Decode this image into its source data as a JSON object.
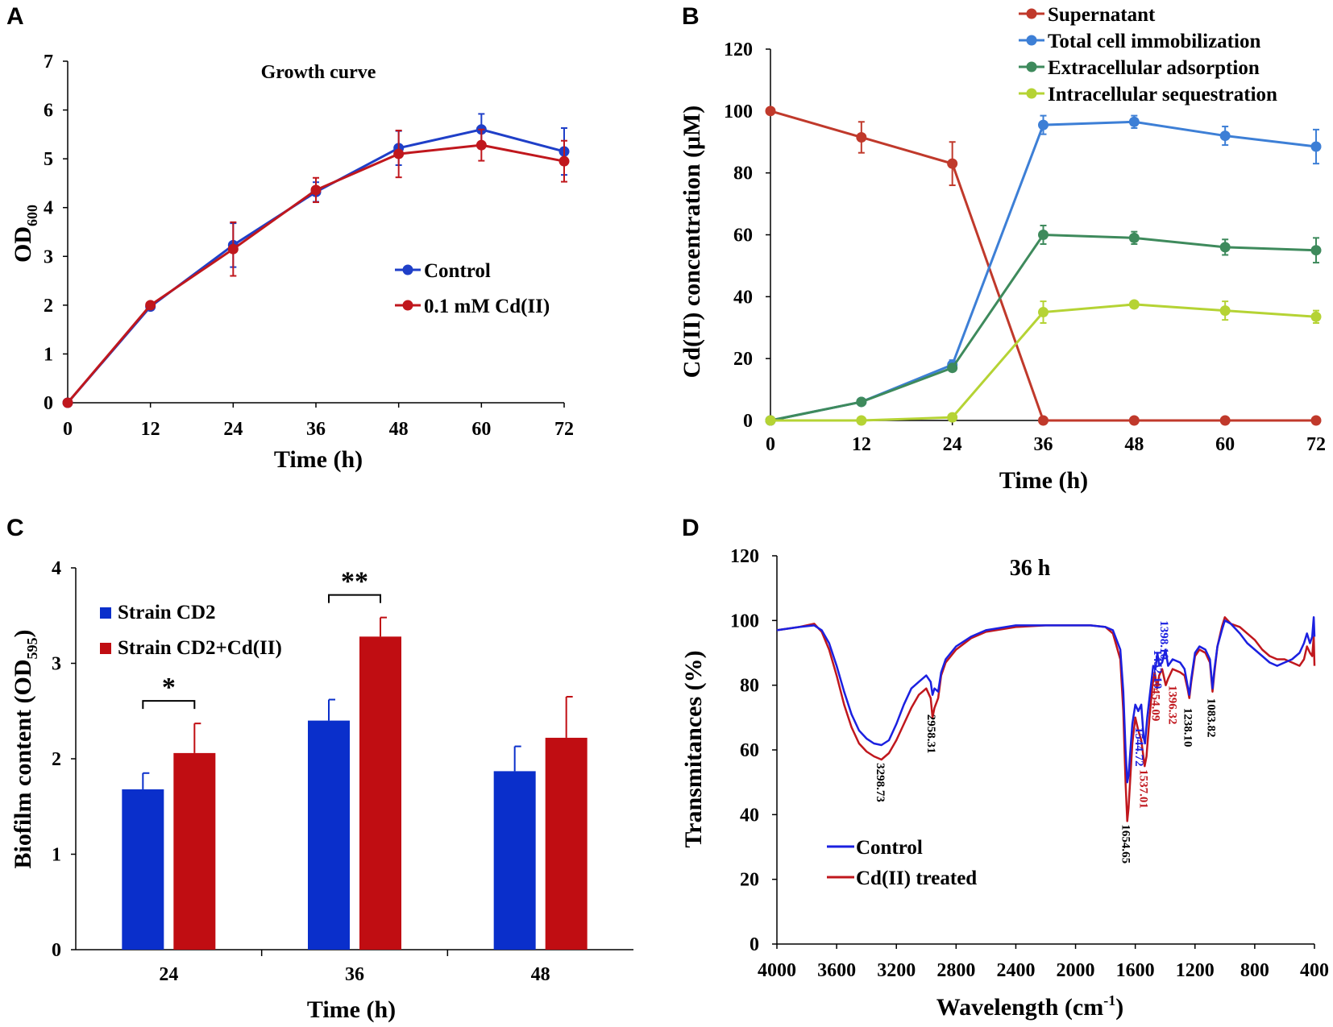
{
  "chart_data": [
    {
      "panel": "A",
      "type": "line",
      "title": "Growth curve",
      "xlabel": "Time (h)",
      "ylabel": "OD",
      "ylabel_sub": "600",
      "x": [
        0,
        12,
        24,
        36,
        48,
        60,
        72
      ],
      "xlim": [
        0,
        72
      ],
      "ylim": [
        0,
        7
      ],
      "xticks": [
        0,
        12,
        24,
        36,
        48,
        60,
        72
      ],
      "yticks": [
        0,
        1,
        2,
        3,
        4,
        5,
        6,
        7
      ],
      "legend": "center-right",
      "series": [
        {
          "name": "Control",
          "color": "#1f3fc8",
          "values": [
            0,
            1.97,
            3.23,
            4.32,
            5.22,
            5.6,
            5.15
          ],
          "errors": [
            0,
            0.05,
            0.45,
            0.2,
            0.35,
            0.32,
            0.48
          ]
        },
        {
          "name": "0.1 mM Cd(II)",
          "color": "#c0171d",
          "values": [
            0,
            2.0,
            3.15,
            4.36,
            5.1,
            5.28,
            4.95
          ],
          "errors": [
            0,
            0.05,
            0.55,
            0.25,
            0.48,
            0.32,
            0.42
          ]
        }
      ]
    },
    {
      "panel": "B",
      "type": "line",
      "title": "",
      "xlabel": "Time (h)",
      "ylabel": "Cd(II) concentration (μM)",
      "x": [
        0,
        12,
        24,
        36,
        48,
        60,
        72
      ],
      "xlim": [
        0,
        72
      ],
      "ylim": [
        0,
        120
      ],
      "xticks": [
        0,
        12,
        24,
        36,
        48,
        60,
        72
      ],
      "yticks": [
        0,
        20,
        40,
        60,
        80,
        100,
        120
      ],
      "legend": "top-right",
      "series": [
        {
          "name": "Supernatant",
          "color": "#c0392b",
          "values": [
            100,
            91.5,
            83,
            0,
            0,
            0,
            0
          ],
          "errors": [
            0,
            5,
            7,
            0,
            0,
            0,
            0
          ]
        },
        {
          "name": "Total cell immobilization",
          "color": "#3d7fd6",
          "values": [
            0,
            6,
            18,
            95.5,
            96.5,
            92,
            88.5
          ],
          "errors": [
            0,
            1,
            1.5,
            3,
            2,
            3,
            5.5
          ]
        },
        {
          "name": "Extracellular adsorption",
          "color": "#3e8a5c",
          "values": [
            0,
            6,
            17,
            60,
            59,
            56,
            55
          ],
          "errors": [
            0,
            1,
            1,
            3,
            2,
            2.5,
            4
          ]
        },
        {
          "name": "Intracellular sequestration",
          "color": "#b5d334",
          "values": [
            0,
            0,
            1,
            35,
            37.5,
            35.5,
            33.5
          ],
          "errors": [
            0,
            0,
            0.5,
            3.5,
            1,
            3,
            2
          ]
        }
      ]
    },
    {
      "panel": "C",
      "type": "bar",
      "title": "",
      "xlabel": "Time (h)",
      "ylabel": "Biofilm content (OD",
      "ylabel_sub": "595",
      "ylabel_end": ")",
      "categories": [
        "24",
        "36",
        "48"
      ],
      "ylim": [
        0,
        4
      ],
      "yticks": [
        0,
        1,
        2,
        3,
        4
      ],
      "legend": "top-left",
      "series": [
        {
          "name": "Strain CD2",
          "color": "#0a2fcb",
          "values": [
            1.68,
            2.4,
            1.87
          ],
          "errors": [
            0.17,
            0.22,
            0.26
          ]
        },
        {
          "name": "Strain CD2+Cd(II)",
          "color": "#c00d12",
          "values": [
            2.06,
            3.28,
            2.22
          ],
          "errors": [
            0.31,
            0.2,
            0.43
          ]
        }
      ],
      "significance": [
        {
          "category": "24",
          "label": "*"
        },
        {
          "category": "36",
          "label": "**"
        }
      ]
    },
    {
      "panel": "D",
      "type": "line",
      "title": "36 h",
      "xlabel": "Wavelength (cm",
      "xlabel_sup": "-1",
      "xlabel_end": ")",
      "ylabel": "Transmitances (%)",
      "xlim": [
        4000,
        400
      ],
      "ylim": [
        0,
        120
      ],
      "xticks": [
        4000,
        3600,
        3200,
        2800,
        2400,
        2000,
        1600,
        1200,
        800,
        400
      ],
      "yticks": [
        0,
        20,
        40,
        60,
        80,
        100,
        120
      ],
      "legend": "bottom-left",
      "series": [
        {
          "name": "Control",
          "color": "#1b20e0",
          "points": [
            [
              4000,
              97
            ],
            [
              3850,
              98
            ],
            [
              3750,
              98.5
            ],
            [
              3700,
              97
            ],
            [
              3650,
              93
            ],
            [
              3600,
              86
            ],
            [
              3550,
              78
            ],
            [
              3500,
              71
            ],
            [
              3450,
              66
            ],
            [
              3400,
              63.5
            ],
            [
              3350,
              62
            ],
            [
              3300,
              61.5
            ],
            [
              3250,
              63
            ],
            [
              3200,
              68
            ],
            [
              3150,
              74
            ],
            [
              3100,
              79
            ],
            [
              3050,
              81
            ],
            [
              3000,
              83
            ],
            [
              2970,
              81
            ],
            [
              2958,
              77
            ],
            [
              2945,
              79
            ],
            [
              2920,
              78
            ],
            [
              2900,
              84
            ],
            [
              2870,
              88
            ],
            [
              2800,
              92
            ],
            [
              2700,
              95
            ],
            [
              2600,
              97
            ],
            [
              2400,
              98.5
            ],
            [
              2200,
              98.5
            ],
            [
              2000,
              98.5
            ],
            [
              1900,
              98.5
            ],
            [
              1800,
              98
            ],
            [
              1750,
              97
            ],
            [
              1700,
              91
            ],
            [
              1680,
              78
            ],
            [
              1665,
              60
            ],
            [
              1654,
              50
            ],
            [
              1645,
              52
            ],
            [
              1620,
              68
            ],
            [
              1600,
              74
            ],
            [
              1580,
              72
            ],
            [
              1560,
              74
            ],
            [
              1544,
              64
            ],
            [
              1535,
              62
            ],
            [
              1520,
              70
            ],
            [
              1500,
              78
            ],
            [
              1480,
              86
            ],
            [
              1465,
              85
            ],
            [
              1452,
              90
            ],
            [
              1440,
              86
            ],
            [
              1420,
              87
            ],
            [
              1398,
              91
            ],
            [
              1380,
              86
            ],
            [
              1350,
              88
            ],
            [
              1300,
              87
            ],
            [
              1270,
              85
            ],
            [
              1250,
              80
            ],
            [
              1238,
              77
            ],
            [
              1225,
              82
            ],
            [
              1200,
              90
            ],
            [
              1170,
              92
            ],
            [
              1130,
              91
            ],
            [
              1100,
              88
            ],
            [
              1083,
              79
            ],
            [
              1070,
              85
            ],
            [
              1050,
              92
            ],
            [
              1020,
              97
            ],
            [
              1000,
              100
            ],
            [
              960,
              99
            ],
            [
              900,
              96
            ],
            [
              850,
              93
            ],
            [
              800,
              91
            ],
            [
              750,
              89
            ],
            [
              700,
              87
            ],
            [
              650,
              86
            ],
            [
              600,
              87
            ],
            [
              550,
              88
            ],
            [
              500,
              90
            ],
            [
              470,
              93
            ],
            [
              450,
              96
            ],
            [
              430,
              93
            ],
            [
              415,
              95
            ],
            [
              405,
              101
            ],
            [
              400,
              95
            ]
          ]
        },
        {
          "name": "Cd(II) treated",
          "color": "#c0171d",
          "points": [
            [
              4000,
              97
            ],
            [
              3850,
              98
            ],
            [
              3750,
              99
            ],
            [
              3700,
              96.5
            ],
            [
              3650,
              91
            ],
            [
              3600,
              83
            ],
            [
              3550,
              74
            ],
            [
              3500,
              67
            ],
            [
              3450,
              62
            ],
            [
              3400,
              59.5
            ],
            [
              3350,
              58
            ],
            [
              3300,
              57
            ],
            [
              3250,
              59
            ],
            [
              3200,
              63
            ],
            [
              3150,
              68
            ],
            [
              3100,
              73
            ],
            [
              3050,
              77
            ],
            [
              3000,
              79
            ],
            [
              2970,
              76
            ],
            [
              2958,
              70
            ],
            [
              2945,
              73
            ],
            [
              2920,
              76
            ],
            [
              2900,
              83
            ],
            [
              2870,
              87
            ],
            [
              2800,
              91
            ],
            [
              2700,
              94.5
            ],
            [
              2600,
              96.5
            ],
            [
              2400,
              98
            ],
            [
              2200,
              98.5
            ],
            [
              2000,
              98.5
            ],
            [
              1900,
              98.5
            ],
            [
              1800,
              98
            ],
            [
              1750,
              96
            ],
            [
              1700,
              88
            ],
            [
              1680,
              72
            ],
            [
              1665,
              50
            ],
            [
              1654,
              38
            ],
            [
              1645,
              42
            ],
            [
              1620,
              62
            ],
            [
              1600,
              70
            ],
            [
              1580,
              66
            ],
            [
              1560,
              63
            ],
            [
              1537,
              55
            ],
            [
              1525,
              58
            ],
            [
              1505,
              70
            ],
            [
              1485,
              80
            ],
            [
              1470,
              84
            ],
            [
              1454,
              79
            ],
            [
              1440,
              83
            ],
            [
              1420,
              85
            ],
            [
              1396,
              80
            ],
            [
              1380,
              82
            ],
            [
              1350,
              85
            ],
            [
              1300,
              84
            ],
            [
              1270,
              83
            ],
            [
              1250,
              79
            ],
            [
              1238,
              76
            ],
            [
              1225,
              81
            ],
            [
              1200,
              89
            ],
            [
              1170,
              91
            ],
            [
              1130,
              90
            ],
            [
              1100,
              87
            ],
            [
              1083,
              78
            ],
            [
              1070,
              84
            ],
            [
              1050,
              92
            ],
            [
              1020,
              98
            ],
            [
              1000,
              101
            ],
            [
              960,
              99
            ],
            [
              900,
              98
            ],
            [
              850,
              96
            ],
            [
              800,
              94
            ],
            [
              750,
              91
            ],
            [
              700,
              89
            ],
            [
              650,
              88
            ],
            [
              600,
              88
            ],
            [
              550,
              87
            ],
            [
              500,
              86
            ],
            [
              470,
              88
            ],
            [
              450,
              92
            ],
            [
              430,
              90
            ],
            [
              415,
              89
            ],
            [
              405,
              95
            ],
            [
              400,
              86
            ]
          ]
        }
      ],
      "annotations": [
        {
          "label": "3298.73",
          "color": "#000000",
          "wn": 3298.73
        },
        {
          "label": "2958.31",
          "color": "#000000",
          "wn": 2958.31
        },
        {
          "label": "1654.65",
          "color": "#000000",
          "wn": 1654.65
        },
        {
          "label": "1537.01",
          "color": "#c0171d",
          "wn": 1537.01
        },
        {
          "label": "1544.72",
          "color": "#1b20e0",
          "wn": 1544.72
        },
        {
          "label": "1452.10",
          "color": "#1b20e0",
          "wn": 1452.1
        },
        {
          "label": "1398.10",
          "color": "#1b20e0",
          "wn": 1398.1
        },
        {
          "label": "1454.09",
          "color": "#c0171d",
          "wn": 1454.09
        },
        {
          "label": "1396.32",
          "color": "#c0171d",
          "wn": 1396.32
        },
        {
          "label": "1238.10",
          "color": "#000000",
          "wn": 1238.1
        },
        {
          "label": "1083.82",
          "color": "#000000",
          "wn": 1083.82
        }
      ]
    }
  ],
  "panel_letters": [
    "A",
    "B",
    "C",
    "D"
  ]
}
